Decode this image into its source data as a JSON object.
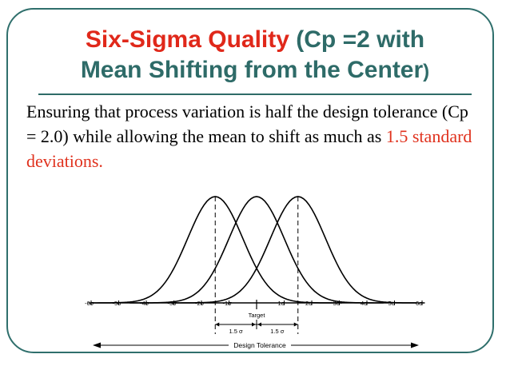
{
  "title": {
    "red": "Six-Sigma Quality",
    "rest_line1": " (Cp =2 with",
    "line2_main": "Mean Shifting from the Center",
    "line2_paren": ")"
  },
  "body": {
    "text": "Ensuring that process variation is half the design tolerance (Cp = 2.0) while allowing the mean to shift as much as ",
    "highlight": "1.5 standard deviations."
  },
  "diagram": {
    "sigma_labels": [
      "-6σ",
      "-5σ",
      "-4σ",
      "-3σ",
      "-2σ",
      "-1σ",
      "1σ",
      "2σ",
      "3σ",
      "4σ",
      "5σ",
      "6σ"
    ],
    "target_label": "Target",
    "shift_left_label": "1.5 σ",
    "shift_right_label": "1.5 σ",
    "tolerance_label": "Design Tolerance",
    "shift_sigma": 1.5
  }
}
